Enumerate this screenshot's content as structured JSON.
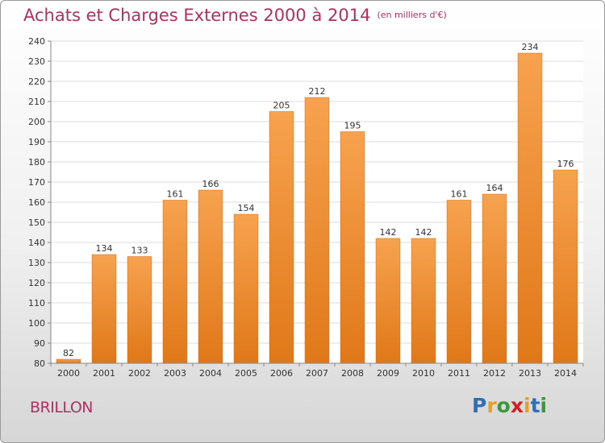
{
  "title": "Achats et Charges Externes 2000 à 2014",
  "unit": "(en milliers d'€)",
  "place": "BRILLON",
  "logo": {
    "letters": [
      "P",
      "r",
      "o",
      "x",
      "i",
      "t",
      "i"
    ],
    "colors": [
      "#2f6fb5",
      "#e8a020",
      "#3a9a3a",
      "#d02020",
      "#e8a020",
      "#2f6fb5",
      "#3a9a3a"
    ]
  },
  "colors": {
    "bar_top": "#f7a24f",
    "bar_bottom": "#e07818",
    "title": "#b03060"
  },
  "chart_data": {
    "type": "bar",
    "categories": [
      "2000",
      "2001",
      "2002",
      "2003",
      "2004",
      "2005",
      "2006",
      "2007",
      "2008",
      "2009",
      "2010",
      "2011",
      "2012",
      "2013",
      "2014"
    ],
    "values": [
      82,
      134,
      133,
      161,
      166,
      154,
      205,
      212,
      195,
      142,
      142,
      161,
      164,
      234,
      176
    ],
    "ylim": [
      80,
      240
    ],
    "yticks": [
      80,
      90,
      100,
      110,
      120,
      130,
      140,
      150,
      160,
      170,
      180,
      190,
      200,
      210,
      220,
      230,
      240
    ],
    "grid": true
  }
}
